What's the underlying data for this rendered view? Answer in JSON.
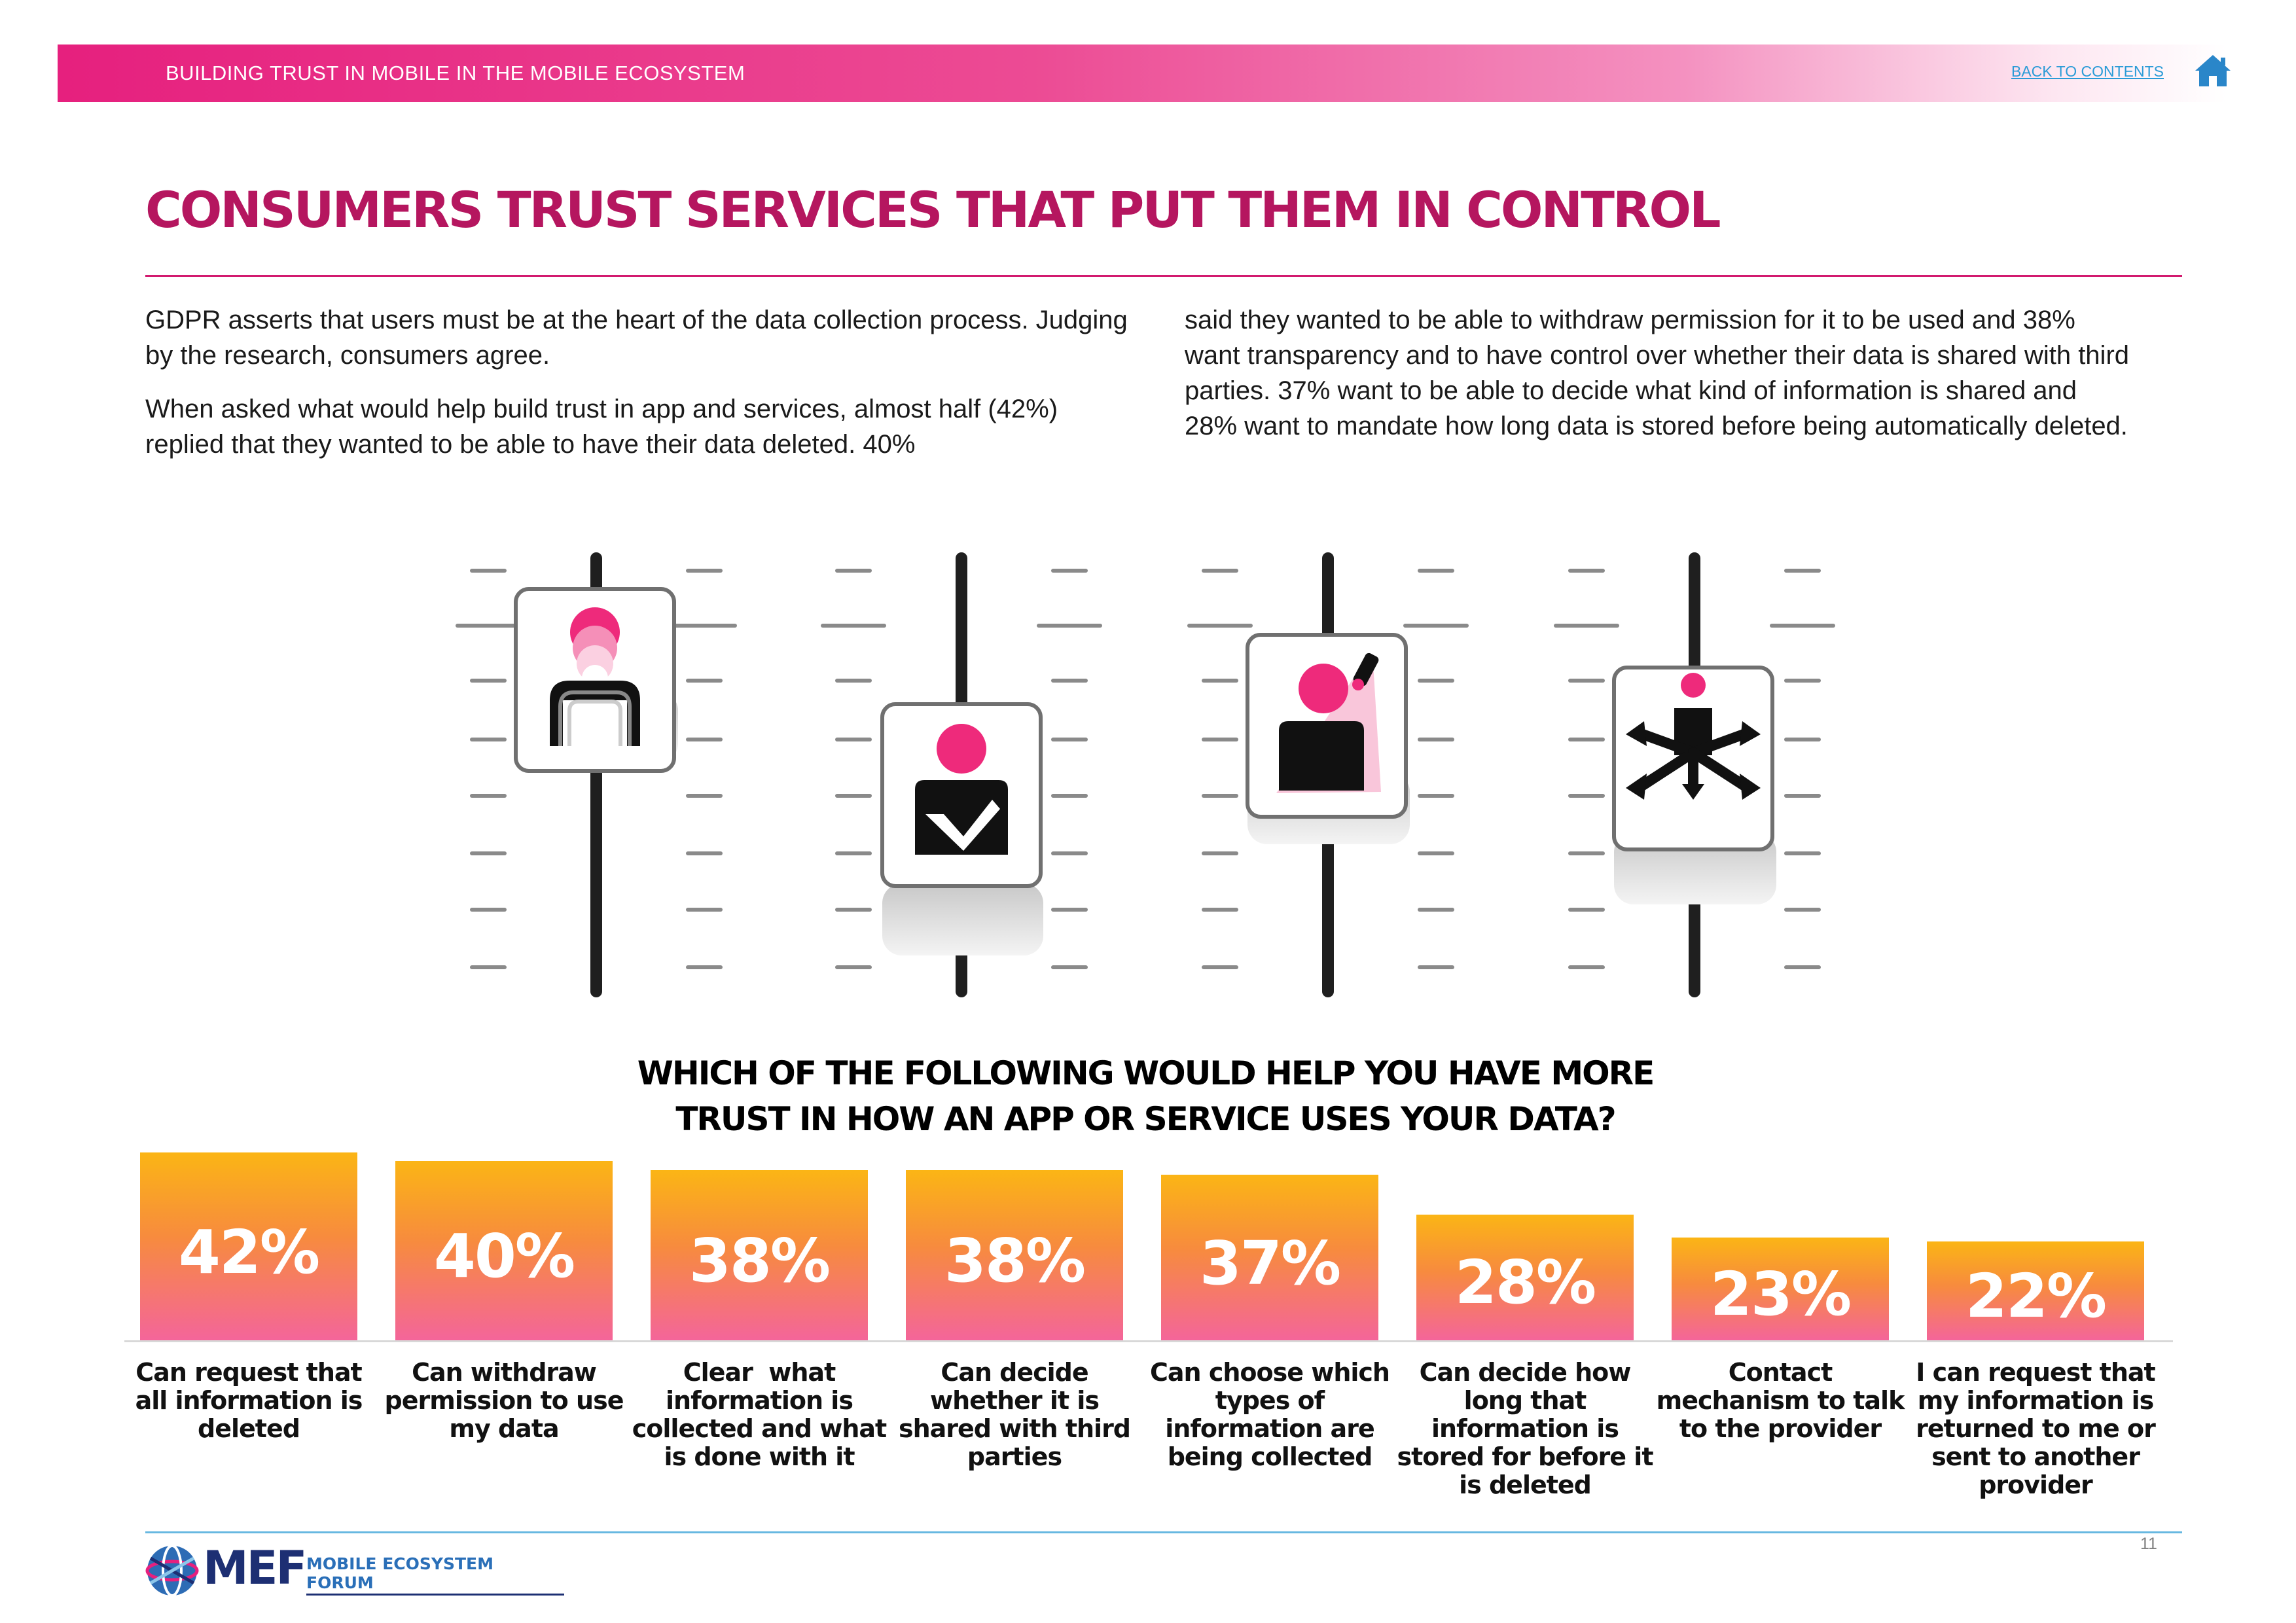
{
  "header": {
    "section_title": "BUILDING TRUST IN MOBILE IN THE MOBILE ECOSYSTEM",
    "back_link": "BACK TO CONTENTS",
    "home_icon": "home-icon"
  },
  "headline": "CONSUMERS TRUST SERVICES THAT PUT THEM IN CONTROL",
  "body": {
    "col1_p1": "GDPR asserts that users must be at the heart of the data collection process. Judging by the research, consumers agree.",
    "col1_p2": "When asked what would help build trust in app and services, almost half (42%) replied that they wanted to be able to have their data deleted. 40%",
    "col2_p1": "said they wanted to be able to withdraw permission for it to be used and 38% want transparency and to have control over whether their data is shared with third parties. 37% want to be able to decide what kind of information is shared and 28% want to mandate how long data is stored before being automatically deleted."
  },
  "illustration": {
    "icons": [
      "fading-person-icon",
      "person-checkmark-icon",
      "person-spotlight-icon",
      "person-arrows-icon"
    ],
    "knob_levels": [
      0.15,
      0.55,
      0.3,
      0.42
    ],
    "accent": "#ee2a7b"
  },
  "question": {
    "line1": "WHICH OF THE FOLLOWING WOULD HELP YOU HAVE MORE",
    "line2": "TRUST IN HOW AN APP OR SERVICE USES YOUR DATA?"
  },
  "chart_data": {
    "type": "bar",
    "categories": [
      "Can request that all information is deleted",
      "Can withdraw permission to use my data",
      "Clear what information is collected and what is done with it",
      "Can decide whether it is shared with third parties",
      "Can choose which types of information are being collected",
      "Can decide how long that information is stored for before it is deleted",
      "Contact mechanism to talk to the provider",
      "I can request that my information is returned to me or sent to another provider"
    ],
    "category_lines": [
      [
        "Can request that",
        "all information is",
        "deleted"
      ],
      [
        "Can withdraw",
        "permission to use",
        "my data"
      ],
      [
        "Clear  what",
        "information is",
        "collected and what",
        "is done with it"
      ],
      [
        "Can decide",
        "whether it is",
        "shared with third",
        "parties"
      ],
      [
        "Can choose which",
        "types of",
        "information are",
        "being collected"
      ],
      [
        "Can decide how",
        "long that",
        "information is",
        "stored for before it",
        "is deleted"
      ],
      [
        "Contact",
        "mechanism to talk",
        "to the provider"
      ],
      [
        "I can request that",
        "my information is",
        "returned to me or",
        "sent to another",
        "provider"
      ]
    ],
    "values": [
      42,
      40,
      38,
      38,
      37,
      28,
      23,
      22
    ],
    "value_labels": [
      "42%",
      "40%",
      "38%",
      "38%",
      "37%",
      "28%",
      "23%",
      "22%"
    ],
    "unit": "%",
    "ylim": [
      0,
      45
    ],
    "colors": {
      "top": "#fbb515",
      "bottom": "#f4659a"
    },
    "grid": false,
    "legend": "none"
  },
  "footer": {
    "logo_text": "MEF",
    "logo_subtext": "MOBILE ECOSYSTEM FORUM",
    "page_number": "11"
  },
  "colors": {
    "brand_magenta": "#e6207e",
    "headline": "#b5165f",
    "link_blue": "#2a9bd7",
    "footer_rule": "#67b8e1"
  }
}
